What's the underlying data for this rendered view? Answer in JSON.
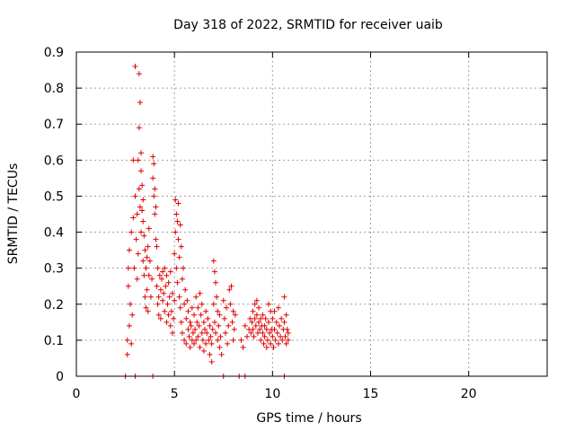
{
  "chart_data": {
    "type": "scatter",
    "title": "Day 318 of 2022, SRMTID for receiver uaib",
    "xlabel": "GPS time / hours",
    "ylabel": "SRMTID / TECUs",
    "xlim": [
      0,
      24
    ],
    "ylim": [
      0,
      0.9
    ],
    "x_ticks": [
      0,
      5,
      10,
      15,
      20
    ],
    "y_ticks": [
      0,
      0.1,
      0.2,
      0.3,
      0.4,
      0.5,
      0.6,
      0.7,
      0.8,
      0.9
    ],
    "x_tick_labels": [
      "0",
      "5",
      "10",
      "15",
      "20"
    ],
    "y_tick_labels": [
      "0",
      "0.1",
      "0.2",
      "0.3",
      "0.4",
      "0.5",
      "0.6",
      "0.7",
      "0.8",
      "0.9"
    ],
    "grid": true,
    "marker": "+",
    "color": "#e00000",
    "series": [
      {
        "points": [
          [
            2.6,
            0.06
          ],
          [
            2.6,
            0.1
          ],
          [
            2.65,
            0.25
          ],
          [
            2.65,
            0.3
          ],
          [
            2.7,
            0.35
          ],
          [
            2.7,
            0.14
          ],
          [
            2.75,
            0.2
          ],
          [
            2.8,
            0.09
          ],
          [
            2.8,
            0.4
          ],
          [
            2.85,
            0.17
          ],
          [
            2.9,
            0.6
          ],
          [
            2.9,
            0.44
          ],
          [
            2.95,
            0.3
          ],
          [
            3.0,
            0.86
          ],
          [
            3.0,
            0.5
          ],
          [
            3.05,
            0.38
          ],
          [
            3.1,
            0.27
          ],
          [
            3.1,
            0.45
          ],
          [
            3.15,
            0.34
          ],
          [
            3.15,
            0.6
          ],
          [
            3.2,
            0.84
          ],
          [
            3.2,
            0.69
          ],
          [
            3.2,
            0.52
          ],
          [
            3.25,
            0.76
          ],
          [
            3.25,
            0.47
          ],
          [
            3.3,
            0.62
          ],
          [
            3.3,
            0.57
          ],
          [
            3.3,
            0.4
          ],
          [
            3.35,
            0.53
          ],
          [
            3.35,
            0.46
          ],
          [
            3.4,
            0.49
          ],
          [
            3.4,
            0.43
          ],
          [
            3.4,
            0.32
          ],
          [
            3.45,
            0.39
          ],
          [
            3.45,
            0.28
          ],
          [
            3.5,
            0.35
          ],
          [
            3.5,
            0.22
          ],
          [
            3.55,
            0.19
          ],
          [
            3.55,
            0.3
          ],
          [
            3.6,
            0.24
          ],
          [
            3.6,
            0.33
          ],
          [
            3.65,
            0.36
          ],
          [
            3.65,
            0.18
          ],
          [
            3.7,
            0.28
          ],
          [
            3.7,
            0.41
          ],
          [
            3.75,
            0.32
          ],
          [
            3.8,
            0.22
          ],
          [
            3.85,
            0.27
          ],
          [
            3.9,
            0.61
          ],
          [
            3.9,
            0.55
          ],
          [
            3.95,
            0.59
          ],
          [
            3.95,
            0.5
          ],
          [
            4.0,
            0.52
          ],
          [
            4.0,
            0.45
          ],
          [
            4.05,
            0.47
          ],
          [
            4.05,
            0.38
          ],
          [
            4.1,
            0.36
          ],
          [
            4.1,
            0.25
          ],
          [
            4.15,
            0.3
          ],
          [
            4.15,
            0.2
          ],
          [
            4.2,
            0.22
          ],
          [
            4.2,
            0.17
          ],
          [
            4.25,
            0.28
          ],
          [
            4.3,
            0.24
          ],
          [
            4.3,
            0.16
          ],
          [
            4.35,
            0.27
          ],
          [
            4.4,
            0.21
          ],
          [
            4.4,
            0.29
          ],
          [
            4.45,
            0.23
          ],
          [
            4.5,
            0.3
          ],
          [
            4.5,
            0.18
          ],
          [
            4.55,
            0.25
          ],
          [
            4.6,
            0.28
          ],
          [
            4.6,
            0.15
          ],
          [
            4.65,
            0.2
          ],
          [
            4.7,
            0.26
          ],
          [
            4.7,
            0.17
          ],
          [
            4.75,
            0.22
          ],
          [
            4.8,
            0.14
          ],
          [
            4.8,
            0.29
          ],
          [
            4.85,
            0.18
          ],
          [
            4.9,
            0.23
          ],
          [
            4.9,
            0.12
          ],
          [
            4.95,
            0.16
          ],
          [
            5.0,
            0.34
          ],
          [
            5.0,
            0.21
          ],
          [
            5.05,
            0.49
          ],
          [
            5.05,
            0.4
          ],
          [
            5.1,
            0.45
          ],
          [
            5.1,
            0.3
          ],
          [
            5.15,
            0.43
          ],
          [
            5.15,
            0.26
          ],
          [
            5.2,
            0.48
          ],
          [
            5.2,
            0.38
          ],
          [
            5.25,
            0.33
          ],
          [
            5.25,
            0.22
          ],
          [
            5.3,
            0.42
          ],
          [
            5.3,
            0.19
          ],
          [
            5.35,
            0.36
          ],
          [
            5.35,
            0.15
          ],
          [
            5.4,
            0.27
          ],
          [
            5.4,
            0.12
          ],
          [
            5.45,
            0.3
          ],
          [
            5.5,
            0.2
          ],
          [
            5.5,
            0.1
          ],
          [
            5.55,
            0.24
          ],
          [
            5.6,
            0.16
          ],
          [
            5.6,
            0.09
          ],
          [
            5.65,
            0.21
          ],
          [
            5.7,
            0.13
          ],
          [
            5.7,
            0.18
          ],
          [
            5.75,
            0.11
          ],
          [
            5.8,
            0.15
          ],
          [
            5.8,
            0.08
          ],
          [
            5.85,
            0.14
          ],
          [
            5.9,
            0.1
          ],
          [
            5.9,
            0.19
          ],
          [
            5.95,
            0.12
          ],
          [
            6.0,
            0.09
          ],
          [
            6.0,
            0.17
          ],
          [
            6.05,
            0.13
          ],
          [
            6.1,
            0.1
          ],
          [
            6.1,
            0.22
          ],
          [
            6.15,
            0.15
          ],
          [
            6.2,
            0.11
          ],
          [
            6.2,
            0.19
          ],
          [
            6.25,
            0.14
          ],
          [
            6.3,
            0.08
          ],
          [
            6.3,
            0.23
          ],
          [
            6.35,
            0.17
          ],
          [
            6.4,
            0.12
          ],
          [
            6.4,
            0.2
          ],
          [
            6.45,
            0.1
          ],
          [
            6.5,
            0.15
          ],
          [
            6.5,
            0.07
          ],
          [
            6.55,
            0.13
          ],
          [
            6.6,
            0.09
          ],
          [
            6.6,
            0.18
          ],
          [
            6.65,
            0.12
          ],
          [
            6.7,
            0.16
          ],
          [
            6.75,
            0.1
          ],
          [
            6.8,
            0.14
          ],
          [
            6.8,
            0.06
          ],
          [
            6.85,
            0.11
          ],
          [
            6.9,
            0.04
          ],
          [
            6.9,
            0.09
          ],
          [
            6.95,
            0.13
          ],
          [
            7.0,
            0.32
          ],
          [
            7.0,
            0.2
          ],
          [
            7.05,
            0.29
          ],
          [
            7.05,
            0.15
          ],
          [
            7.1,
            0.26
          ],
          [
            7.1,
            0.12
          ],
          [
            7.15,
            0.22
          ],
          [
            7.2,
            0.18
          ],
          [
            7.2,
            0.1
          ],
          [
            7.25,
            0.14
          ],
          [
            7.3,
            0.08
          ],
          [
            7.3,
            0.17
          ],
          [
            7.35,
            0.11
          ],
          [
            7.4,
            0.06
          ],
          [
            7.5,
            0.21
          ],
          [
            7.55,
            0.16
          ],
          [
            7.6,
            0.12
          ],
          [
            7.65,
            0.19
          ],
          [
            7.7,
            0.09
          ],
          [
            7.75,
            0.14
          ],
          [
            7.8,
            0.24
          ],
          [
            7.85,
            0.2
          ],
          [
            7.9,
            0.25
          ],
          [
            7.95,
            0.15
          ],
          [
            8.0,
            0.18
          ],
          [
            8.0,
            0.1
          ],
          [
            8.05,
            0.13
          ],
          [
            8.1,
            0.17
          ],
          [
            8.4,
            0.1
          ],
          [
            8.5,
            0.08
          ],
          [
            8.6,
            0.14
          ],
          [
            8.7,
            0.11
          ],
          [
            8.8,
            0.13
          ],
          [
            8.85,
            0.16
          ],
          [
            8.9,
            0.12
          ],
          [
            8.95,
            0.15
          ],
          [
            9.0,
            0.13
          ],
          [
            9.0,
            0.18
          ],
          [
            9.05,
            0.11
          ],
          [
            9.1,
            0.16
          ],
          [
            9.1,
            0.2
          ],
          [
            9.15,
            0.14
          ],
          [
            9.2,
            0.17
          ],
          [
            9.2,
            0.21
          ],
          [
            9.25,
            0.12
          ],
          [
            9.3,
            0.15
          ],
          [
            9.3,
            0.19
          ],
          [
            9.35,
            0.13
          ],
          [
            9.4,
            0.16
          ],
          [
            9.4,
            0.1
          ],
          [
            9.45,
            0.14
          ],
          [
            9.5,
            0.12
          ],
          [
            9.5,
            0.17
          ],
          [
            9.55,
            0.09
          ],
          [
            9.6,
            0.14
          ],
          [
            9.6,
            0.11
          ],
          [
            9.65,
            0.16
          ],
          [
            9.7,
            0.08
          ],
          [
            9.7,
            0.13
          ],
          [
            9.75,
            0.1
          ],
          [
            9.8,
            0.2
          ],
          [
            9.8,
            0.15
          ],
          [
            9.85,
            0.12
          ],
          [
            9.9,
            0.18
          ],
          [
            9.9,
            0.09
          ],
          [
            9.95,
            0.13
          ],
          [
            10.0,
            0.11
          ],
          [
            10.0,
            0.16
          ],
          [
            10.05,
            0.08
          ],
          [
            10.1,
            0.13
          ],
          [
            10.1,
            0.18
          ],
          [
            10.15,
            0.1
          ],
          [
            10.2,
            0.15
          ],
          [
            10.25,
            0.12
          ],
          [
            10.3,
            0.19
          ],
          [
            10.3,
            0.09
          ],
          [
            10.35,
            0.14
          ],
          [
            10.4,
            0.11
          ],
          [
            10.45,
            0.16
          ],
          [
            10.5,
            0.1
          ],
          [
            10.55,
            0.13
          ],
          [
            10.6,
            0.22
          ],
          [
            10.6,
            0.15
          ],
          [
            10.65,
            0.11
          ],
          [
            10.7,
            0.17
          ],
          [
            10.7,
            0.09
          ],
          [
            10.75,
            0.13
          ],
          [
            10.8,
            0.1
          ],
          [
            10.8,
            0.12
          ]
        ]
      },
      {
        "points": [
          [
            2.5,
            0
          ],
          [
            3.0,
            0
          ],
          [
            3.9,
            0
          ],
          [
            7.5,
            0
          ],
          [
            8.3,
            0
          ],
          [
            8.6,
            0
          ],
          [
            10.6,
            0
          ]
        ]
      }
    ]
  }
}
